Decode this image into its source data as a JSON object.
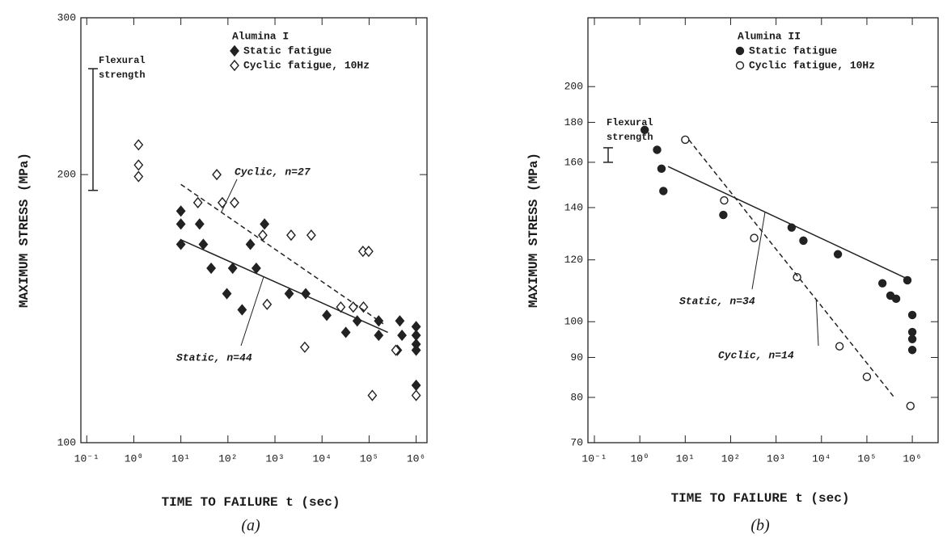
{
  "chart_data": [
    {
      "type": "scatter",
      "legend_title": "Alumina I",
      "xlabel": "TIME TO FAILURE t (sec)",
      "ylabel": "MAXIMUM STRESS (MPa)",
      "caption": "(a)",
      "log_x": true,
      "log_y": true,
      "legend": "top-right",
      "xlim": [
        0.075,
        1700000
      ],
      "xticks": [
        {
          "value": 0.1,
          "label": "10⁻¹"
        },
        {
          "value": 1,
          "label": "10⁰"
        },
        {
          "value": 10,
          "label": "10¹"
        },
        {
          "value": 100,
          "label": "10²"
        },
        {
          "value": 1000,
          "label": "10³"
        },
        {
          "value": 10000,
          "label": "10⁴"
        },
        {
          "value": 100000,
          "label": "10⁵"
        },
        {
          "value": 1000000,
          "label": "10⁶"
        }
      ],
      "ylim": [
        100,
        300
      ],
      "yticks": [
        100,
        200,
        300
      ],
      "series": [
        {
          "name": "Static fatigue",
          "marker": "diamond",
          "filled": true,
          "color": "#222222",
          "x": [
            10,
            10,
            10,
            25,
            30,
            44,
            95,
            126,
            200,
            300,
            400,
            600,
            2000,
            4500,
            12600,
            32000,
            56000,
            160000,
            160000,
            400000,
            500000,
            450000,
            1000000,
            1000000,
            1000000,
            1000000,
            1000000
          ],
          "values": [
            182,
            176,
            167,
            176,
            167,
            157,
            147,
            157,
            141,
            167,
            157,
            176,
            147,
            147,
            139,
            133,
            137,
            137,
            132,
            127,
            132,
            137,
            135,
            132,
            129,
            127,
            116
          ]
        },
        {
          "name": "Cyclic fatigue, 10Hz",
          "marker": "diamond",
          "filled": false,
          "color": "#222222",
          "x": [
            1.26,
            1.26,
            1.26,
            23,
            58,
            76,
            138,
            550,
            680,
            2200,
            4300,
            5900,
            25000,
            46000,
            74000,
            98000,
            76000,
            117000,
            370000,
            1000000
          ],
          "values": [
            216,
            205,
            199,
            186,
            200,
            186,
            186,
            171,
            143,
            171,
            128,
            171,
            142,
            142,
            164,
            164,
            142,
            113,
            127,
            113
          ]
        }
      ],
      "fit_lines": [
        {
          "name": "Cyclic, n=27",
          "style": "dashed",
          "x": [
            10,
            200000
          ],
          "y": [
            195,
            136
          ]
        },
        {
          "name": "Static, n=44",
          "style": "solid",
          "x": [
            10,
            250000
          ],
          "y": [
            169,
            133
          ]
        }
      ],
      "flexural_strength": {
        "label": [
          "Flexural",
          "strength"
        ],
        "range": [
          192,
          263
        ]
      }
    },
    {
      "type": "scatter",
      "legend_title": "Alumina II",
      "xlabel": "TIME TO FAILURE t (sec)",
      "ylabel": "MAXIMUM STRESS (MPa)",
      "caption": "(b)",
      "log_x": true,
      "log_y": true,
      "legend": "top-right",
      "xlim": [
        0.072,
        3700000
      ],
      "xticks": [
        {
          "value": 0.1,
          "label": "10⁻¹"
        },
        {
          "value": 1,
          "label": "10⁰"
        },
        {
          "value": 10,
          "label": "10¹"
        },
        {
          "value": 100,
          "label": "10²"
        },
        {
          "value": 1000,
          "label": "10³"
        },
        {
          "value": 10000,
          "label": "10⁴"
        },
        {
          "value": 100000,
          "label": "10⁵"
        },
        {
          "value": 1000000,
          "label": "10⁶"
        }
      ],
      "ylim": [
        70,
        245
      ],
      "yticks": [
        70,
        80,
        90,
        100,
        120,
        140,
        160,
        180,
        200
      ],
      "series": [
        {
          "name": "Static fatigue",
          "marker": "circle",
          "filled": true,
          "color": "#222222",
          "x": [
            1.28,
            2.4,
            3,
            3.3,
            69,
            2200,
            4000,
            23000,
            220000,
            330000,
            440000,
            780000,
            1000000,
            1000000,
            1000000,
            1000000
          ],
          "values": [
            176,
            166,
            157,
            147,
            137,
            132,
            127,
            122,
            112,
            108,
            107,
            113,
            102,
            97,
            95,
            92
          ]
        },
        {
          "name": "Cyclic fatigue, 10Hz",
          "marker": "circle",
          "filled": false,
          "color": "#222222",
          "x": [
            10,
            72,
            330,
            2900,
            25000,
            100000,
            910000
          ],
          "values": [
            171,
            143,
            128,
            114,
            93,
            85,
            78
          ]
        }
      ],
      "fit_lines": [
        {
          "name": "Static, n=34",
          "style": "solid",
          "x": [
            4.2,
            910000
          ],
          "y": [
            158,
            113
          ]
        },
        {
          "name": "Cyclic, n=14",
          "style": "dashed",
          "x": [
            12,
            400000
          ],
          "y": [
            171,
            80
          ]
        }
      ],
      "flexural_strength": {
        "label": [
          "Flexural",
          "strength"
        ],
        "range": [
          160,
          167
        ]
      }
    }
  ]
}
